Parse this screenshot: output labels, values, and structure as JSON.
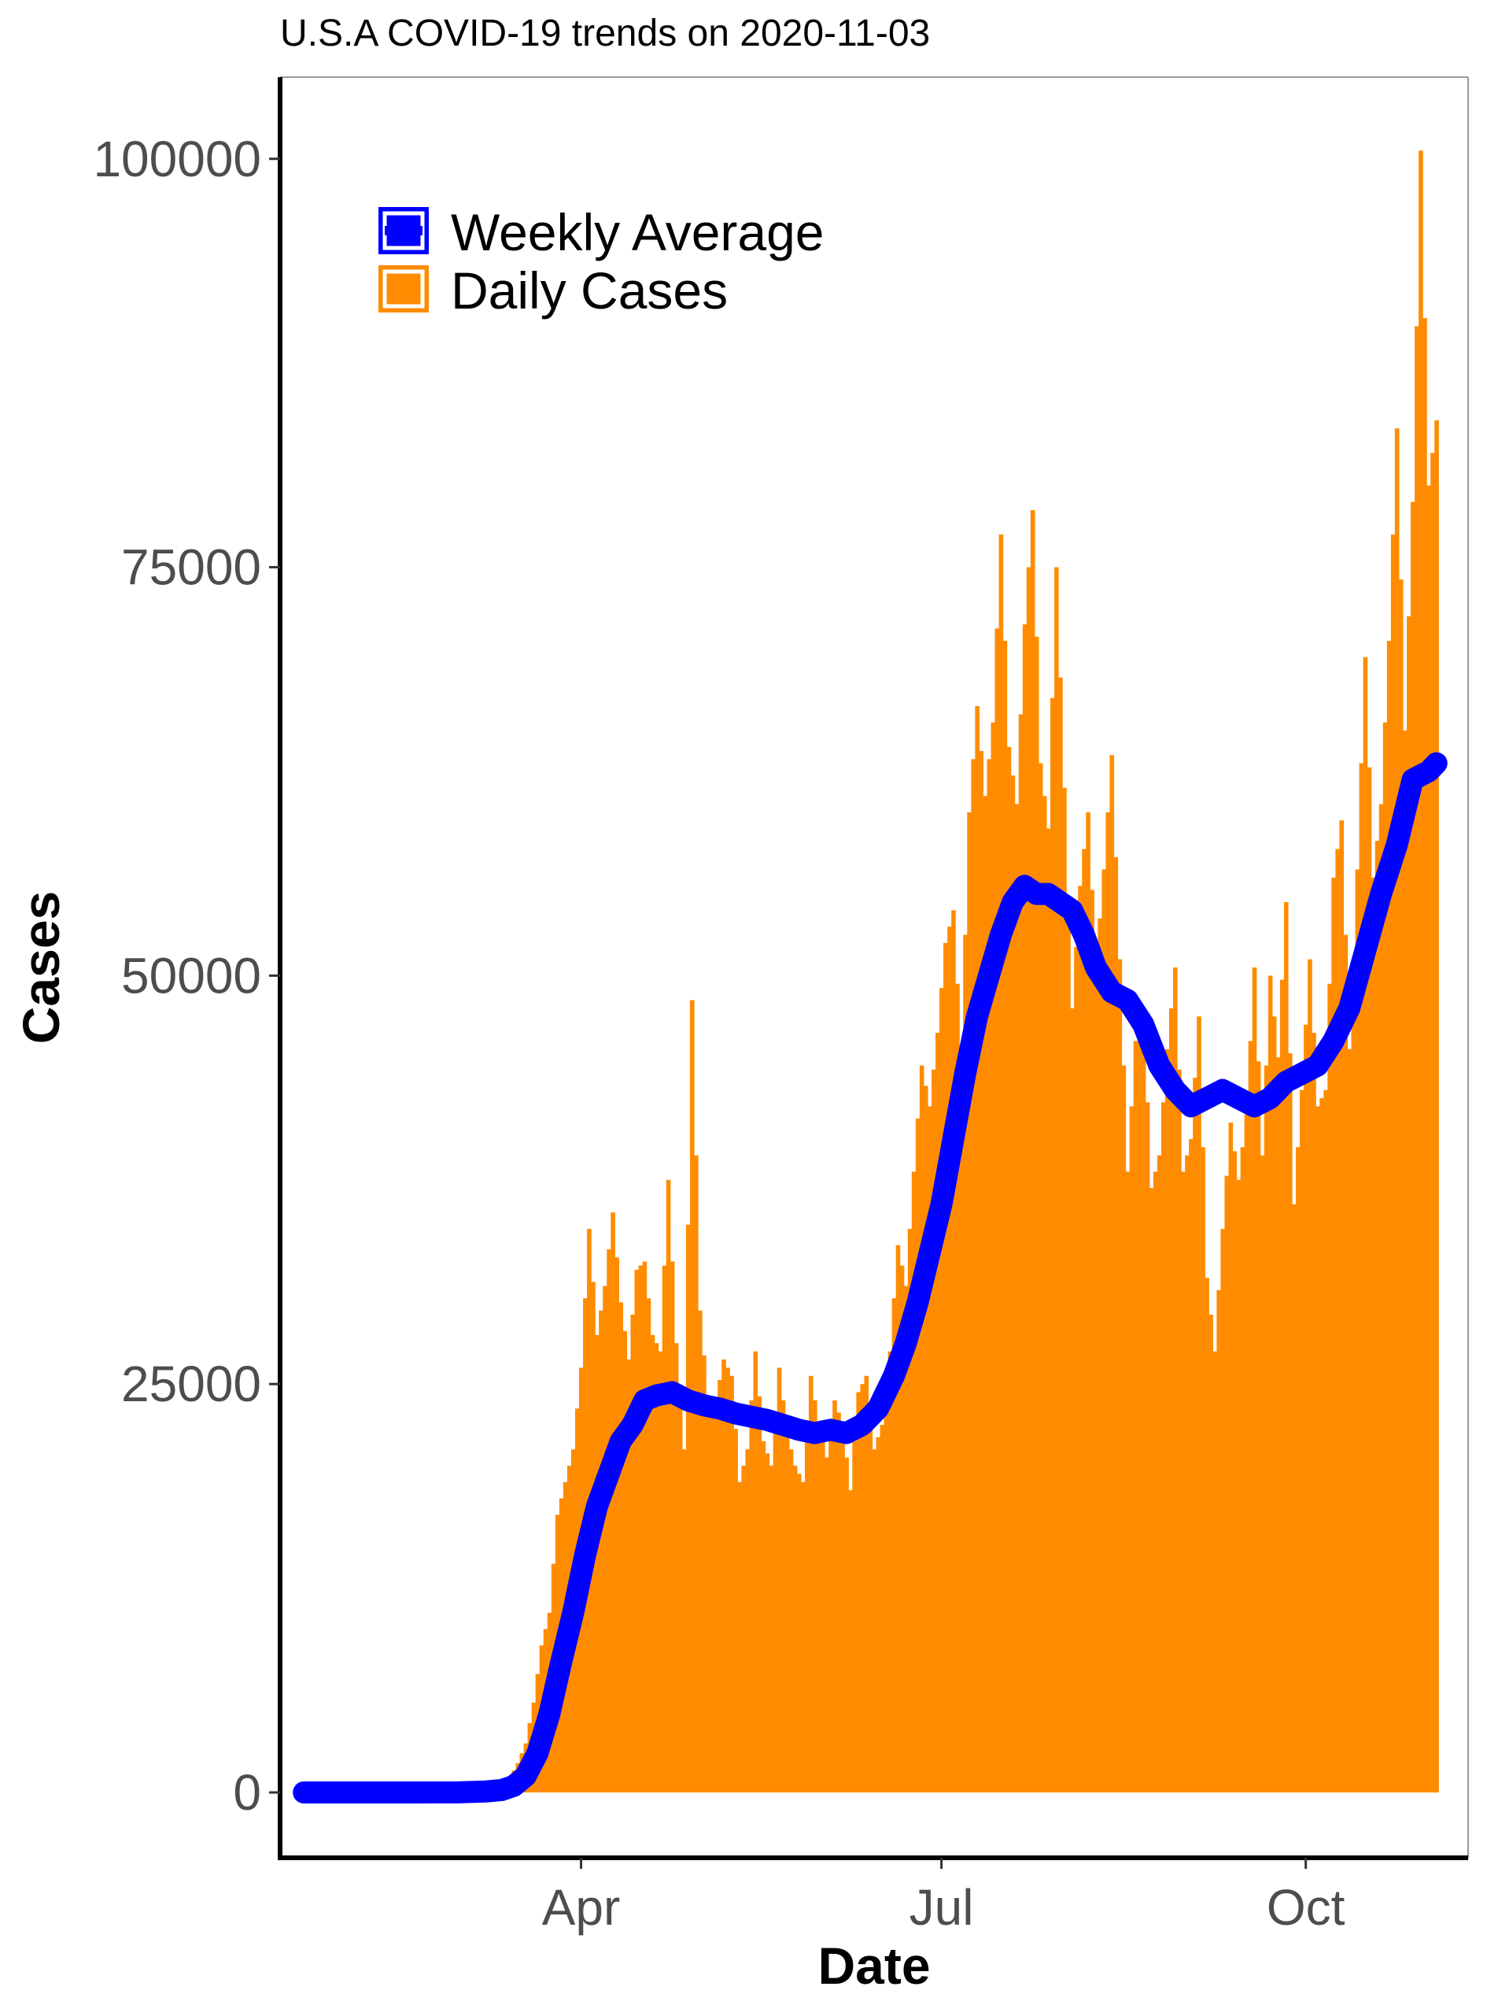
{
  "chart_data": {
    "type": "bar",
    "title": "U.S.A COVID-19 trends on 2020-11-03",
    "xlabel": "Date",
    "ylabel": "Cases",
    "x_range": [
      "2020-01-16",
      "2020-11-11"
    ],
    "ylim": [
      -4000,
      105000
    ],
    "grid": false,
    "legend_position": "top-left",
    "x_ticks": [
      {
        "label": "Apr",
        "date": "2020-04-01"
      },
      {
        "label": "Jul",
        "date": "2020-07-01"
      },
      {
        "label": "Oct",
        "date": "2020-10-01"
      }
    ],
    "y_ticks": [
      {
        "label": "0",
        "value": 0
      },
      {
        "label": "25000",
        "value": 25000
      },
      {
        "label": "50000",
        "value": 50000
      },
      {
        "label": "75000",
        "value": 75000
      },
      {
        "label": "100000",
        "value": 100000
      }
    ],
    "series": [
      {
        "name": "Weekly Average",
        "kind": "line",
        "color": "#0000ff",
        "points": [
          [
            "2020-01-22",
            0
          ],
          [
            "2020-02-15",
            0
          ],
          [
            "2020-03-01",
            5
          ],
          [
            "2020-03-08",
            60
          ],
          [
            "2020-03-12",
            150
          ],
          [
            "2020-03-15",
            400
          ],
          [
            "2020-03-18",
            1000
          ],
          [
            "2020-03-21",
            2400
          ],
          [
            "2020-03-24",
            4800
          ],
          [
            "2020-03-27",
            8000
          ],
          [
            "2020-03-30",
            11000
          ],
          [
            "2020-04-02",
            14500
          ],
          [
            "2020-04-05",
            17500
          ],
          [
            "2020-04-08",
            19500
          ],
          [
            "2020-04-11",
            21500
          ],
          [
            "2020-04-14",
            22500
          ],
          [
            "2020-04-17",
            24000
          ],
          [
            "2020-04-20",
            24300
          ],
          [
            "2020-04-24",
            24500
          ],
          [
            "2020-04-28",
            24000
          ],
          [
            "2020-05-02",
            23700
          ],
          [
            "2020-05-06",
            23500
          ],
          [
            "2020-05-10",
            23200
          ],
          [
            "2020-05-14",
            23000
          ],
          [
            "2020-05-18",
            22800
          ],
          [
            "2020-05-22",
            22500
          ],
          [
            "2020-05-26",
            22200
          ],
          [
            "2020-05-30",
            22000
          ],
          [
            "2020-06-03",
            22200
          ],
          [
            "2020-06-07",
            22000
          ],
          [
            "2020-06-11",
            22500
          ],
          [
            "2020-06-15",
            23500
          ],
          [
            "2020-06-19",
            25500
          ],
          [
            "2020-06-22",
            27500
          ],
          [
            "2020-06-25",
            30000
          ],
          [
            "2020-06-28",
            33000
          ],
          [
            "2020-07-01",
            36000
          ],
          [
            "2020-07-04",
            40000
          ],
          [
            "2020-07-07",
            44000
          ],
          [
            "2020-07-10",
            47500
          ],
          [
            "2020-07-13",
            50000
          ],
          [
            "2020-07-16",
            52500
          ],
          [
            "2020-07-19",
            54500
          ],
          [
            "2020-07-22",
            55500
          ],
          [
            "2020-07-25",
            55000
          ],
          [
            "2020-07-28",
            55000
          ],
          [
            "2020-07-31",
            54500
          ],
          [
            "2020-08-03",
            54000
          ],
          [
            "2020-08-06",
            52500
          ],
          [
            "2020-08-09",
            50500
          ],
          [
            "2020-08-13",
            49000
          ],
          [
            "2020-08-17",
            48500
          ],
          [
            "2020-08-21",
            47000
          ],
          [
            "2020-08-25",
            44500
          ],
          [
            "2020-08-29",
            43000
          ],
          [
            "2020-09-02",
            42000
          ],
          [
            "2020-09-06",
            42500
          ],
          [
            "2020-09-10",
            43000
          ],
          [
            "2020-09-14",
            42500
          ],
          [
            "2020-09-18",
            42000
          ],
          [
            "2020-09-22",
            42500
          ],
          [
            "2020-09-26",
            43500
          ],
          [
            "2020-09-30",
            44000
          ],
          [
            "2020-10-04",
            44500
          ],
          [
            "2020-10-08",
            46000
          ],
          [
            "2020-10-12",
            48000
          ],
          [
            "2020-10-16",
            51500
          ],
          [
            "2020-10-20",
            55000
          ],
          [
            "2020-10-24",
            58000
          ],
          [
            "2020-10-28",
            62000
          ],
          [
            "2020-11-01",
            62500
          ],
          [
            "2020-11-03",
            63000
          ]
        ]
      },
      {
        "name": "Daily Cases",
        "kind": "bar",
        "color": "#ff8c00",
        "points": [
          [
            "2020-01-22",
            0
          ],
          [
            "2020-02-15",
            0
          ],
          [
            "2020-03-01",
            15
          ],
          [
            "2020-03-05",
            100
          ],
          [
            "2020-03-08",
            150
          ],
          [
            "2020-03-11",
            400
          ],
          [
            "2020-03-14",
            900
          ],
          [
            "2020-03-16",
            1800
          ],
          [
            "2020-03-18",
            3000
          ],
          [
            "2020-03-20",
            5500
          ],
          [
            "2020-03-22",
            9000
          ],
          [
            "2020-03-24",
            11000
          ],
          [
            "2020-03-26",
            17000
          ],
          [
            "2020-03-28",
            19000
          ],
          [
            "2020-03-30",
            21000
          ],
          [
            "2020-04-01",
            26000
          ],
          [
            "2020-04-03",
            34500
          ],
          [
            "2020-04-05",
            28000
          ],
          [
            "2020-04-07",
            31000
          ],
          [
            "2020-04-09",
            35500
          ],
          [
            "2020-04-11",
            30000
          ],
          [
            "2020-04-13",
            26500
          ],
          [
            "2020-04-15",
            32000
          ],
          [
            "2020-04-17",
            32500
          ],
          [
            "2020-04-19",
            28000
          ],
          [
            "2020-04-21",
            27000
          ],
          [
            "2020-04-23",
            37500
          ],
          [
            "2020-04-25",
            27500
          ],
          [
            "2020-04-27",
            21000
          ],
          [
            "2020-04-29",
            48500
          ],
          [
            "2020-05-01",
            29500
          ],
          [
            "2020-05-03",
            24000
          ],
          [
            "2020-05-05",
            24000
          ],
          [
            "2020-05-07",
            26500
          ],
          [
            "2020-05-09",
            25500
          ],
          [
            "2020-05-11",
            19000
          ],
          [
            "2020-05-13",
            21000
          ],
          [
            "2020-05-15",
            27000
          ],
          [
            "2020-05-17",
            21500
          ],
          [
            "2020-05-19",
            20000
          ],
          [
            "2020-05-21",
            26000
          ],
          [
            "2020-05-23",
            22000
          ],
          [
            "2020-05-25",
            20000
          ],
          [
            "2020-05-27",
            19000
          ],
          [
            "2020-05-29",
            25500
          ],
          [
            "2020-05-31",
            22500
          ],
          [
            "2020-06-02",
            20500
          ],
          [
            "2020-06-04",
            24000
          ],
          [
            "2020-06-06",
            22500
          ],
          [
            "2020-06-08",
            18500
          ],
          [
            "2020-06-10",
            24500
          ],
          [
            "2020-06-12",
            25500
          ],
          [
            "2020-06-14",
            21000
          ],
          [
            "2020-06-16",
            22500
          ],
          [
            "2020-06-18",
            27000
          ],
          [
            "2020-06-20",
            33500
          ],
          [
            "2020-06-22",
            31000
          ],
          [
            "2020-06-24",
            38000
          ],
          [
            "2020-06-26",
            44500
          ],
          [
            "2020-06-28",
            42000
          ],
          [
            "2020-06-30",
            46500
          ],
          [
            "2020-07-02",
            52000
          ],
          [
            "2020-07-04",
            54000
          ],
          [
            "2020-07-06",
            45000
          ],
          [
            "2020-07-08",
            60000
          ],
          [
            "2020-07-10",
            66500
          ],
          [
            "2020-07-12",
            61000
          ],
          [
            "2020-07-14",
            65500
          ],
          [
            "2020-07-16",
            77000
          ],
          [
            "2020-07-18",
            64000
          ],
          [
            "2020-07-20",
            60500
          ],
          [
            "2020-07-22",
            71500
          ],
          [
            "2020-07-24",
            78500
          ],
          [
            "2020-07-26",
            63000
          ],
          [
            "2020-07-28",
            59000
          ],
          [
            "2020-07-30",
            75000
          ],
          [
            "2020-08-01",
            61500
          ],
          [
            "2020-08-03",
            48000
          ],
          [
            "2020-08-05",
            55500
          ],
          [
            "2020-08-07",
            60000
          ],
          [
            "2020-08-09",
            50500
          ],
          [
            "2020-08-11",
            56500
          ],
          [
            "2020-08-13",
            63500
          ],
          [
            "2020-08-15",
            51000
          ],
          [
            "2020-08-17",
            38000
          ],
          [
            "2020-08-19",
            46000
          ],
          [
            "2020-08-21",
            47500
          ],
          [
            "2020-08-23",
            37000
          ],
          [
            "2020-08-25",
            39000
          ],
          [
            "2020-08-27",
            45500
          ],
          [
            "2020-08-29",
            50500
          ],
          [
            "2020-08-31",
            38000
          ],
          [
            "2020-09-02",
            40000
          ],
          [
            "2020-09-04",
            47500
          ],
          [
            "2020-09-06",
            31500
          ],
          [
            "2020-09-08",
            27000
          ],
          [
            "2020-09-10",
            34500
          ],
          [
            "2020-09-12",
            41000
          ],
          [
            "2020-09-14",
            37500
          ],
          [
            "2020-09-16",
            41500
          ],
          [
            "2020-09-18",
            50500
          ],
          [
            "2020-09-20",
            39000
          ],
          [
            "2020-09-22",
            50000
          ],
          [
            "2020-09-24",
            45000
          ],
          [
            "2020-09-26",
            54500
          ],
          [
            "2020-09-28",
            36000
          ],
          [
            "2020-09-30",
            43000
          ],
          [
            "2020-10-02",
            51000
          ],
          [
            "2020-10-04",
            42000
          ],
          [
            "2020-10-06",
            43000
          ],
          [
            "2020-10-08",
            56000
          ],
          [
            "2020-10-10",
            59500
          ],
          [
            "2020-10-12",
            45500
          ],
          [
            "2020-10-14",
            56500
          ],
          [
            "2020-10-16",
            69500
          ],
          [
            "2020-10-18",
            56000
          ],
          [
            "2020-10-20",
            60500
          ],
          [
            "2020-10-22",
            70500
          ],
          [
            "2020-10-24",
            83500
          ],
          [
            "2020-10-26",
            65000
          ],
          [
            "2020-10-28",
            79000
          ],
          [
            "2020-10-30",
            100500
          ],
          [
            "2020-11-01",
            80000
          ],
          [
            "2020-11-03",
            84000
          ]
        ]
      }
    ]
  }
}
